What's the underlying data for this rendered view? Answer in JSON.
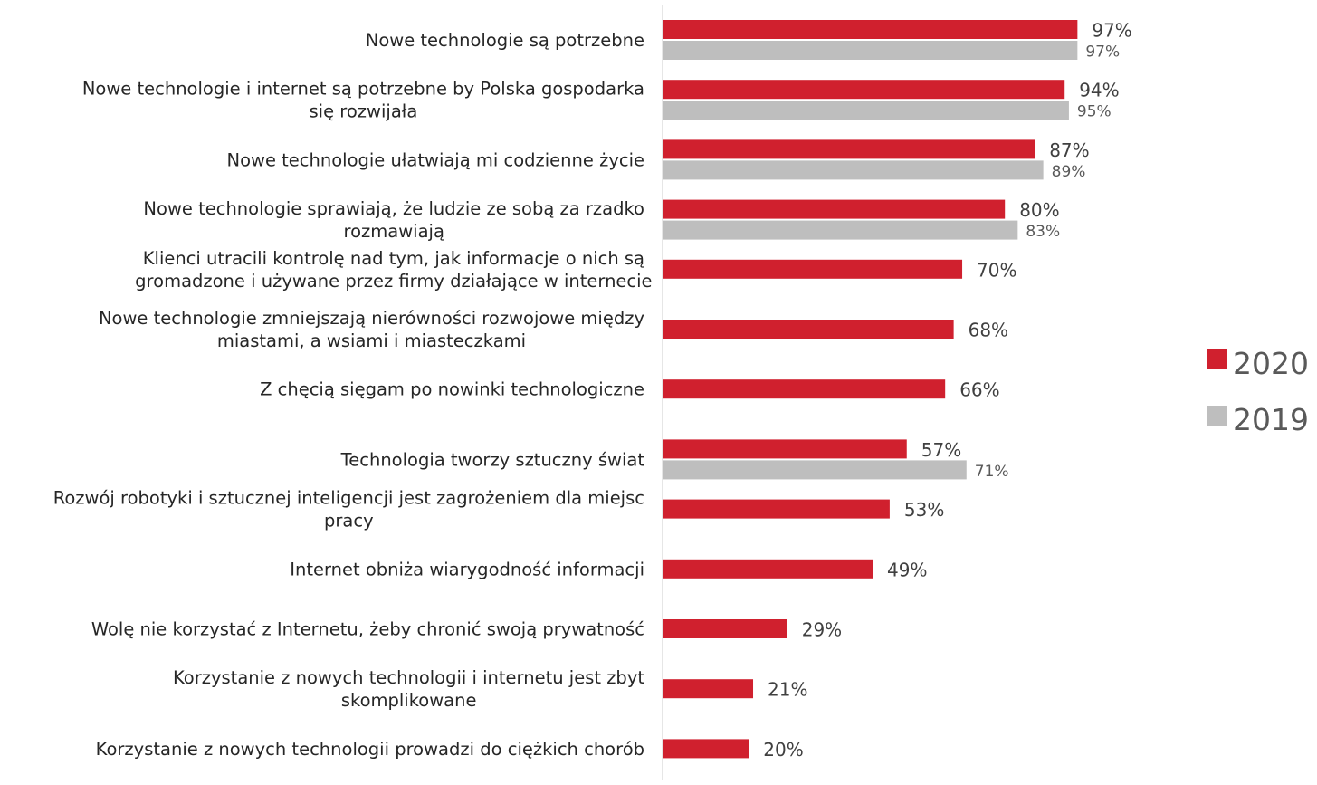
{
  "chart_data": {
    "type": "bar",
    "orientation": "horizontal",
    "categories": [
      [
        "Nowe technologie są potrzebne"
      ],
      [
        "Nowe technologie i internet są potrzebne by Polska gospodarka",
        "się rozwijała"
      ],
      [
        "Nowe technologie ułatwiają mi codzienne życie"
      ],
      [
        "Nowe technologie sprawiają, że ludzie ze sobą za rzadko",
        "rozmawiają"
      ],
      [
        "Klienci utracili kontrolę nad tym, jak informacje o nich są",
        "gromadzone i używane przez firmy działające w internecie"
      ],
      [
        "Nowe technologie zmniejszają nierówności rozwojowe między",
        "miastami, a wsiami i miasteczkami"
      ],
      [
        "Z chęcią sięgam po nowinki technologiczne"
      ],
      [
        "Technologia tworzy sztuczny świat"
      ],
      [
        "Rozwój robotyki i sztucznej inteligencji jest zagrożeniem dla miejsc",
        "pracy"
      ],
      [
        "Internet obniża wiarygodność informacji"
      ],
      [
        "Wolę nie korzystać z Internetu, żeby chronić swoją prywatność"
      ],
      [
        "Korzystanie z nowych technologii i internetu jest zbyt",
        "skomplikowane"
      ],
      [
        "Korzystanie z nowych technologii prowadzi do ciężkich chorób"
      ]
    ],
    "series": [
      {
        "name": "2020",
        "color": "#d0202e",
        "values": [
          97,
          94,
          87,
          80,
          70,
          68,
          66,
          57,
          53,
          49,
          29,
          21,
          20
        ]
      },
      {
        "name": "2019",
        "color": "#bebebe",
        "values": [
          97,
          95,
          89,
          83,
          null,
          null,
          null,
          71,
          null,
          null,
          null,
          null,
          null
        ]
      }
    ],
    "value_suffix": "%",
    "xlim": [
      0,
      100
    ],
    "legend_position": "right",
    "grid": false,
    "title": "",
    "xlabel": "",
    "ylabel": ""
  }
}
